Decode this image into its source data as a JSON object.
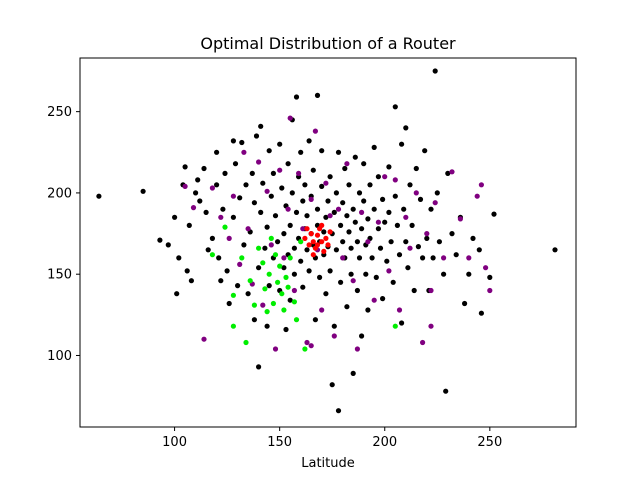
{
  "chart_data": {
    "type": "scatter",
    "title": "Optimal Distribution of a Router",
    "xlabel": "Latitude",
    "ylabel": "",
    "xlim": [
      55,
      291
    ],
    "ylim": [
      56,
      283
    ],
    "xticks": [
      100,
      150,
      200,
      250
    ],
    "yticks": [
      100,
      150,
      200,
      250
    ],
    "grid": false,
    "series": [
      {
        "color": "#000000",
        "points": [
          [
            64,
            198
          ],
          [
            85,
            201
          ],
          [
            93,
            171
          ],
          [
            97,
            168
          ],
          [
            100,
            185
          ],
          [
            101,
            138
          ],
          [
            102,
            160
          ],
          [
            104,
            205
          ],
          [
            105,
            216
          ],
          [
            106,
            152
          ],
          [
            107,
            180
          ],
          [
            108,
            146
          ],
          [
            110,
            200
          ],
          [
            111,
            208
          ],
          [
            112,
            195
          ],
          [
            114,
            215
          ],
          [
            115,
            188
          ],
          [
            116,
            165
          ],
          [
            118,
            172
          ],
          [
            120,
            225
          ],
          [
            120,
            205
          ],
          [
            121,
            160
          ],
          [
            122,
            146
          ],
          [
            123,
            190
          ],
          [
            124,
            212
          ],
          [
            125,
            152
          ],
          [
            126,
            132
          ],
          [
            128,
            185
          ],
          [
            128,
            232
          ],
          [
            129,
            218
          ],
          [
            130,
            143
          ],
          [
            131,
            197
          ],
          [
            132,
            231
          ],
          [
            133,
            168
          ],
          [
            134,
            205
          ],
          [
            135,
            138
          ],
          [
            136,
            176
          ],
          [
            137,
            212
          ],
          [
            138,
            194
          ],
          [
            138,
            122
          ],
          [
            139,
            235
          ],
          [
            140,
            154
          ],
          [
            140,
            93
          ],
          [
            141,
            241
          ],
          [
            141,
            188
          ],
          [
            142,
            206
          ],
          [
            143,
            166
          ],
          [
            144,
            179
          ],
          [
            144,
            118
          ],
          [
            145,
            143
          ],
          [
            145,
            226
          ],
          [
            146,
            198
          ],
          [
            147,
            160
          ],
          [
            147,
            212
          ],
          [
            148,
            186
          ],
          [
            149,
            170
          ],
          [
            150,
            140
          ],
          [
            150,
            230
          ],
          [
            151,
            203
          ],
          [
            152,
            175
          ],
          [
            152,
            154
          ],
          [
            153,
            192
          ],
          [
            153,
            116
          ],
          [
            154,
            218
          ],
          [
            154,
            162
          ],
          [
            155,
            180
          ],
          [
            155,
            134
          ],
          [
            156,
            200
          ],
          [
            156,
            245
          ],
          [
            157,
            166
          ],
          [
            157,
            150
          ],
          [
            158,
            259
          ],
          [
            158,
            188
          ],
          [
            159,
            210
          ],
          [
            159,
            172
          ],
          [
            160,
            158
          ],
          [
            160,
            225
          ],
          [
            161,
            195
          ],
          [
            161,
            142
          ],
          [
            162,
            178
          ],
          [
            162,
            205
          ],
          [
            163,
            165
          ],
          [
            163,
            186
          ],
          [
            164,
            152
          ],
          [
            164,
            232
          ],
          [
            165,
            198
          ],
          [
            165,
            175
          ],
          [
            166,
            168
          ],
          [
            166,
            214
          ],
          [
            167,
            160
          ],
          [
            167,
            122
          ],
          [
            168,
            190
          ],
          [
            168,
            260
          ],
          [
            168,
            180
          ],
          [
            169,
            170
          ],
          [
            169,
            148
          ],
          [
            170,
            204
          ],
          [
            170,
            226
          ],
          [
            171,
            176
          ],
          [
            171,
            162
          ],
          [
            172,
            185
          ],
          [
            172,
            138
          ],
          [
            173,
            195
          ],
          [
            173,
            167
          ],
          [
            174,
            210
          ],
          [
            174,
            152
          ],
          [
            175,
            82
          ],
          [
            175,
            175
          ],
          [
            176,
            188
          ],
          [
            176,
            118
          ],
          [
            177,
            165
          ],
          [
            177,
            200
          ],
          [
            178,
            225
          ],
          [
            178,
            66
          ],
          [
            179,
            180
          ],
          [
            179,
            145
          ],
          [
            180,
            194
          ],
          [
            180,
            170
          ],
          [
            181,
            160
          ],
          [
            181,
            215
          ],
          [
            182,
            186
          ],
          [
            182,
            130
          ],
          [
            183,
            176
          ],
          [
            183,
            205
          ],
          [
            184,
            166
          ],
          [
            184,
            150
          ],
          [
            185,
            89
          ],
          [
            185,
            190
          ],
          [
            186,
            182
          ],
          [
            186,
            222
          ],
          [
            187,
            170
          ],
          [
            187,
            140
          ],
          [
            188,
            200
          ],
          [
            188,
            160
          ],
          [
            189,
            178
          ],
          [
            189,
            112
          ],
          [
            190,
            195
          ],
          [
            190,
            218
          ],
          [
            191,
            168
          ],
          [
            191,
            150
          ],
          [
            192,
            184
          ],
          [
            192,
            128
          ],
          [
            193,
            205
          ],
          [
            193,
            172
          ],
          [
            194,
            160
          ],
          [
            195,
            190
          ],
          [
            195,
            228
          ],
          [
            196,
            148
          ],
          [
            197,
            178
          ],
          [
            197,
            210
          ],
          [
            198,
            166
          ],
          [
            199,
            196
          ],
          [
            199,
            135
          ],
          [
            200,
            182
          ],
          [
            201,
            158
          ],
          [
            202,
            216
          ],
          [
            202,
            188
          ],
          [
            203,
            170
          ],
          [
            204,
            145
          ],
          [
            205,
            253
          ],
          [
            205,
            198
          ],
          [
            206,
            180
          ],
          [
            207,
            162
          ],
          [
            208,
            230
          ],
          [
            208,
            120
          ],
          [
            209,
            190
          ],
          [
            210,
            240
          ],
          [
            210,
            170
          ],
          [
            211,
            154
          ],
          [
            212,
            205
          ],
          [
            213,
            180
          ],
          [
            214,
            140
          ],
          [
            215,
            215
          ],
          [
            216,
            167
          ],
          [
            217,
            196
          ],
          [
            218,
            160
          ],
          [
            219,
            226
          ],
          [
            220,
            172
          ],
          [
            221,
            140
          ],
          [
            222,
            190
          ],
          [
            223,
            160
          ],
          [
            224,
            275
          ],
          [
            225,
            200
          ],
          [
            226,
            170
          ],
          [
            228,
            150
          ],
          [
            229,
            78
          ],
          [
            230,
            212
          ],
          [
            232,
            175
          ],
          [
            234,
            162
          ],
          [
            236,
            185
          ],
          [
            238,
            132
          ],
          [
            240,
            150
          ],
          [
            242,
            172
          ],
          [
            245,
            165
          ],
          [
            246,
            126
          ],
          [
            250,
            148
          ],
          [
            252,
            187
          ],
          [
            281,
            165
          ]
        ]
      },
      {
        "color": "#800080",
        "points": [
          [
            105,
            204
          ],
          [
            109,
            191
          ],
          [
            114,
            110
          ],
          [
            118,
            203
          ],
          [
            122,
            185
          ],
          [
            126,
            172
          ],
          [
            128,
            198
          ],
          [
            131,
            156
          ],
          [
            133,
            225
          ],
          [
            135,
            178
          ],
          [
            137,
            144
          ],
          [
            140,
            219
          ],
          [
            142,
            131
          ],
          [
            144,
            201
          ],
          [
            146,
            168
          ],
          [
            148,
            104
          ],
          [
            150,
            214
          ],
          [
            152,
            160
          ],
          [
            154,
            190
          ],
          [
            155,
            246
          ],
          [
            157,
            140
          ],
          [
            159,
            212
          ],
          [
            161,
            178
          ],
          [
            163,
            108
          ],
          [
            165,
            196
          ],
          [
            167,
            238
          ],
          [
            168,
            165
          ],
          [
            170,
            128
          ],
          [
            172,
            206
          ],
          [
            174,
            186
          ],
          [
            176,
            112
          ],
          [
            178,
            190
          ],
          [
            180,
            160
          ],
          [
            182,
            218
          ],
          [
            185,
            146
          ],
          [
            187,
            104
          ],
          [
            189,
            188
          ],
          [
            192,
            170
          ],
          [
            195,
            134
          ],
          [
            197,
            182
          ],
          [
            200,
            210
          ],
          [
            202,
            152
          ],
          [
            205,
            208
          ],
          [
            207,
            128
          ],
          [
            210,
            185
          ],
          [
            212,
            166
          ],
          [
            215,
            200
          ],
          [
            218,
            108
          ],
          [
            220,
            175
          ],
          [
            222,
            140
          ],
          [
            224,
            194
          ],
          [
            228,
            160
          ],
          [
            232,
            213
          ],
          [
            236,
            184
          ],
          [
            240,
            160
          ],
          [
            244,
            198
          ],
          [
            246,
            205
          ],
          [
            248,
            154
          ],
          [
            250,
            140
          ],
          [
            222,
            118
          ],
          [
            165,
            106
          ]
        ]
      },
      {
        "color": "#00ee00",
        "points": [
          [
            124,
            179
          ],
          [
            128,
            137
          ],
          [
            128,
            118
          ],
          [
            132,
            160
          ],
          [
            134,
            108
          ],
          [
            136,
            146
          ],
          [
            138,
            131
          ],
          [
            140,
            166
          ],
          [
            142,
            157
          ],
          [
            143,
            141
          ],
          [
            144,
            127
          ],
          [
            145,
            150
          ],
          [
            146,
            172
          ],
          [
            147,
            132
          ],
          [
            148,
            162
          ],
          [
            149,
            145
          ],
          [
            150,
            155
          ],
          [
            151,
            138
          ],
          [
            152,
            128
          ],
          [
            153,
            148
          ],
          [
            154,
            142
          ],
          [
            155,
            160
          ],
          [
            157,
            133
          ],
          [
            158,
            122
          ],
          [
            160,
            170
          ],
          [
            162,
            104
          ],
          [
            205,
            118
          ],
          [
            118,
            162
          ]
        ]
      },
      {
        "color": "#ff0000",
        "points": [
          [
            162,
            172
          ],
          [
            164,
            168
          ],
          [
            165,
            175
          ],
          [
            166,
            170
          ],
          [
            167,
            166
          ],
          [
            168,
            174
          ],
          [
            169,
            178
          ],
          [
            170,
            170
          ],
          [
            171,
            164
          ],
          [
            172,
            172
          ],
          [
            173,
            168
          ],
          [
            166,
            162
          ],
          [
            170,
            180
          ],
          [
            163,
            178
          ],
          [
            174,
            176
          ],
          [
            168,
            168
          ]
        ]
      }
    ]
  }
}
